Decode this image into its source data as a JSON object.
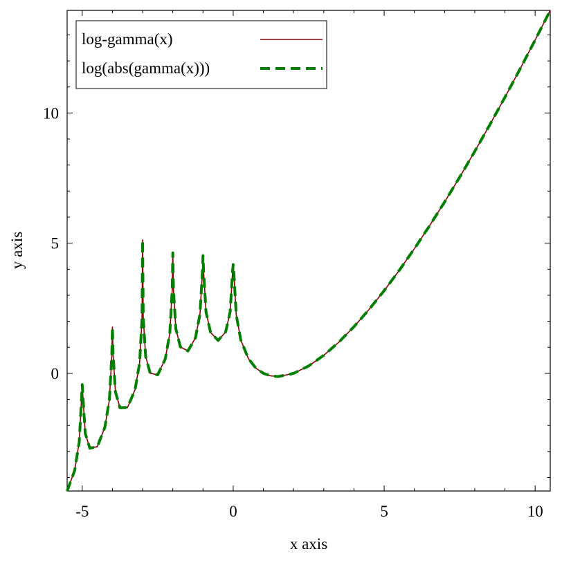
{
  "chart_data": {
    "type": "line",
    "xlabel": "x axis",
    "ylabel": "y axis",
    "x": [
      -5.5,
      -5.25,
      -5.1,
      -5.02,
      -5,
      -4.98,
      -4.9,
      -4.75,
      -4.5,
      -4.25,
      -4.1,
      -4.02,
      -4,
      -3.98,
      -3.9,
      -3.75,
      -3.5,
      -3.25,
      -3.1,
      -3.02,
      -3,
      -2.98,
      -2.9,
      -2.75,
      -2.5,
      -2.25,
      -2.1,
      -2.02,
      -2,
      -1.98,
      -1.9,
      -1.75,
      -1.5,
      -1.25,
      -1.1,
      -1.02,
      -1,
      -0.98,
      -0.9,
      -0.75,
      -0.5,
      -0.25,
      -0.1,
      -0.02,
      0,
      0.02,
      0.1,
      0.25,
      0.5,
      0.75,
      1,
      1.25,
      1.5,
      2,
      2.5,
      3,
      3.5,
      4,
      4.5,
      5,
      5.5,
      6,
      6.5,
      7,
      7.5,
      8,
      8.5,
      9,
      9.5,
      10,
      10.5
    ],
    "series": [
      {
        "name": "log-gamma(x)",
        "color": "#8b0000",
        "dashed": false,
        "values": [
          -4.518,
          -3.728,
          -2.64,
          -0.909,
          -0.43,
          -0.841,
          -2.299,
          -2.875,
          -2.813,
          -2.07,
          -1.011,
          0.704,
          1.78,
          0.765,
          -0.71,
          -1.317,
          -1.309,
          -0.623,
          0.4,
          2.095,
          5.13,
          2.146,
          0.652,
          0.005,
          -0.056,
          0.556,
          1.532,
          3.201,
          4.63,
          3.238,
          1.716,
          1.016,
          0.86,
          1.366,
          2.274,
          3.904,
          4.52,
          3.921,
          2.358,
          1.576,
          1.266,
          1.59,
          2.369,
          3.924,
          4.18,
          3.901,
          2.253,
          1.288,
          0.572,
          0.203,
          0,
          -0.098,
          -0.121,
          0,
          0.285,
          0.693,
          1.201,
          1.792,
          2.454,
          3.178,
          3.958,
          4.787,
          5.663,
          6.579,
          7.534,
          8.525,
          9.549,
          10.605,
          11.689,
          12.802,
          13.941
        ]
      },
      {
        "name": "log(abs(gamma(x)))",
        "color": "#008000",
        "dashed": true,
        "values": [
          -4.518,
          -3.728,
          -2.64,
          -0.909,
          -0.43,
          -0.841,
          -2.299,
          -2.875,
          -2.813,
          -2.07,
          -1.011,
          0.704,
          1.78,
          0.765,
          -0.71,
          -1.317,
          -1.309,
          -0.623,
          0.4,
          2.095,
          5.13,
          2.146,
          0.652,
          0.005,
          -0.056,
          0.556,
          1.532,
          3.201,
          4.63,
          3.238,
          1.716,
          1.016,
          0.86,
          1.366,
          2.274,
          3.904,
          4.52,
          3.921,
          2.358,
          1.576,
          1.266,
          1.59,
          2.369,
          3.924,
          4.18,
          3.901,
          2.253,
          1.288,
          0.572,
          0.203,
          0,
          -0.098,
          -0.121,
          0,
          0.285,
          0.693,
          1.201,
          1.792,
          2.454,
          3.178,
          3.958,
          4.787,
          5.663,
          6.579,
          7.534,
          8.525,
          9.549,
          10.605,
          11.689,
          12.802,
          13.941
        ]
      }
    ],
    "xlim": [
      -5.5,
      10.5
    ],
    "ylim": [
      -4.518,
      13.941
    ],
    "xticks": [
      -5,
      0,
      5,
      10
    ],
    "yticks": [
      0,
      5,
      10
    ],
    "x_minor_ticks": [
      -4,
      -3,
      -2,
      -1,
      1,
      2,
      3,
      4,
      6,
      7,
      8,
      9
    ],
    "y_minor_ticks": [
      -4,
      -3,
      -2,
      -1,
      1,
      2,
      3,
      4,
      6,
      7,
      8,
      9,
      11,
      12,
      13
    ],
    "legend": "upper-left"
  }
}
